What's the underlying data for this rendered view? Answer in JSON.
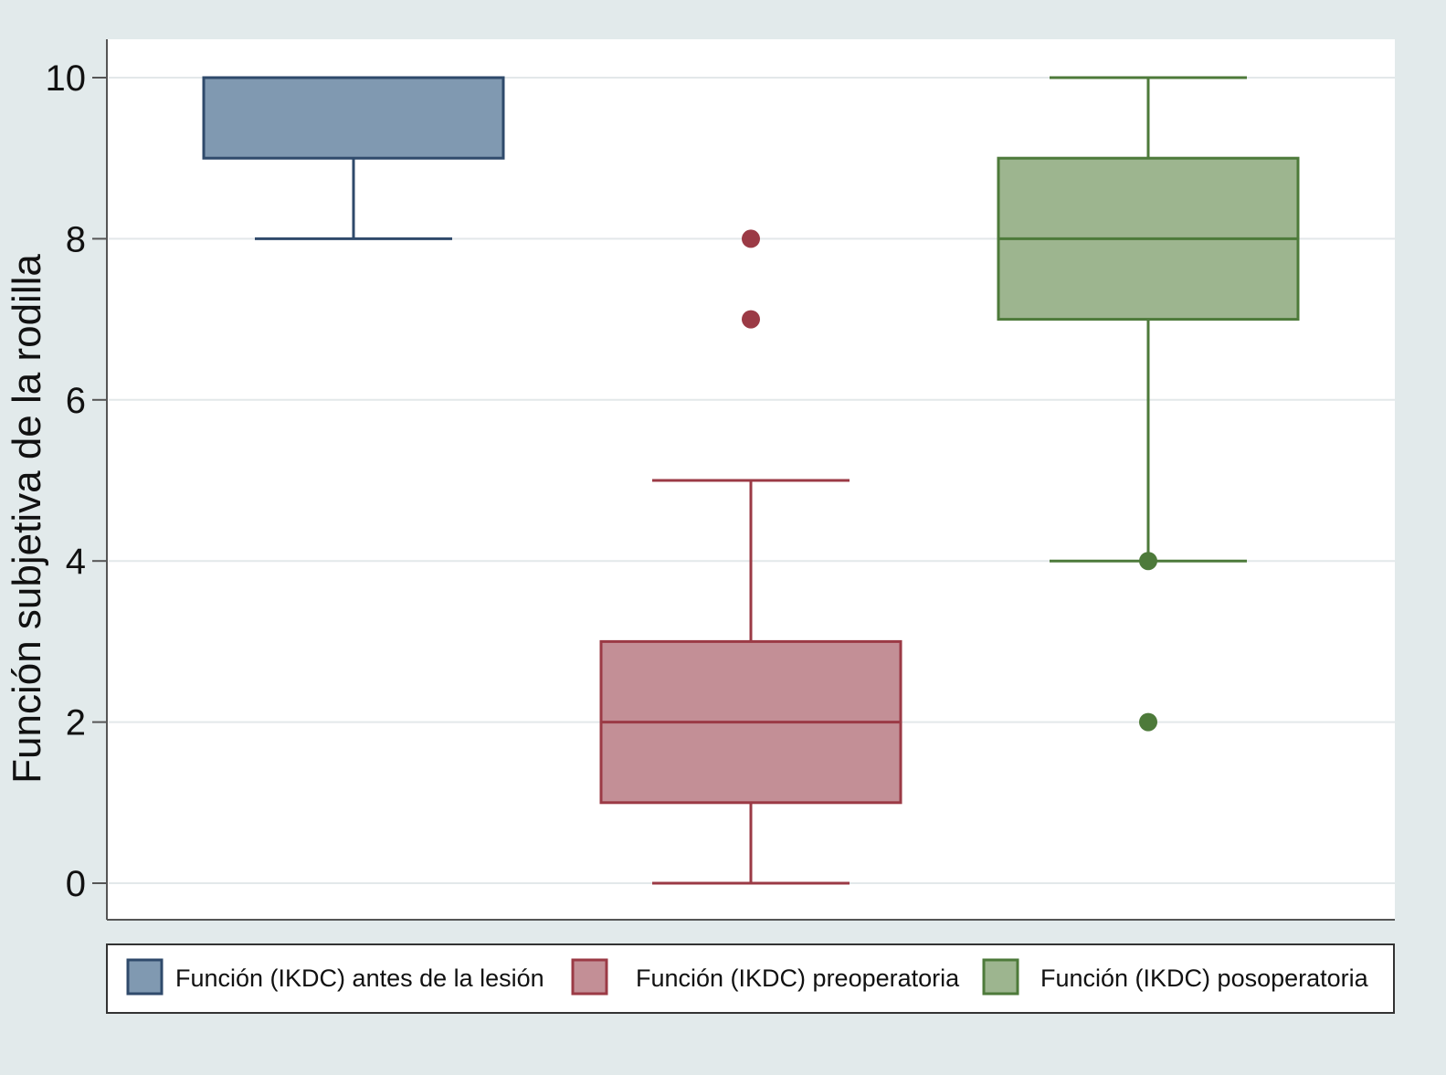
{
  "chart_data": {
    "type": "boxplot",
    "ylabel": "Función subjetiva de la rodilla",
    "ylim": [
      0,
      10
    ],
    "yticks": [
      0,
      2,
      4,
      6,
      8,
      10
    ],
    "grid": true,
    "legend_position": "bottom",
    "series": [
      {
        "name": "Función (IKDC) antes de la lesión",
        "color": "#8099b1",
        "stroke": "#2f4a6b",
        "whisker_low": 8,
        "q1": 9,
        "median": 10,
        "q3": 10,
        "whisker_high": 10,
        "outliers": []
      },
      {
        "name": "Función (IKDC) preoperatoria",
        "color": "#c38f96",
        "stroke": "#9b3a45",
        "whisker_low": 0,
        "q1": 1,
        "median": 2,
        "q3": 3,
        "whisker_high": 5,
        "outliers": [
          7,
          8
        ]
      },
      {
        "name": "Función (IKDC) posoperatoria",
        "color": "#9db58f",
        "stroke": "#4d7a3a",
        "whisker_low": 4,
        "q1": 7,
        "median": 8,
        "q3": 9,
        "whisker_high": 10,
        "outliers": [
          2,
          4
        ]
      }
    ]
  }
}
